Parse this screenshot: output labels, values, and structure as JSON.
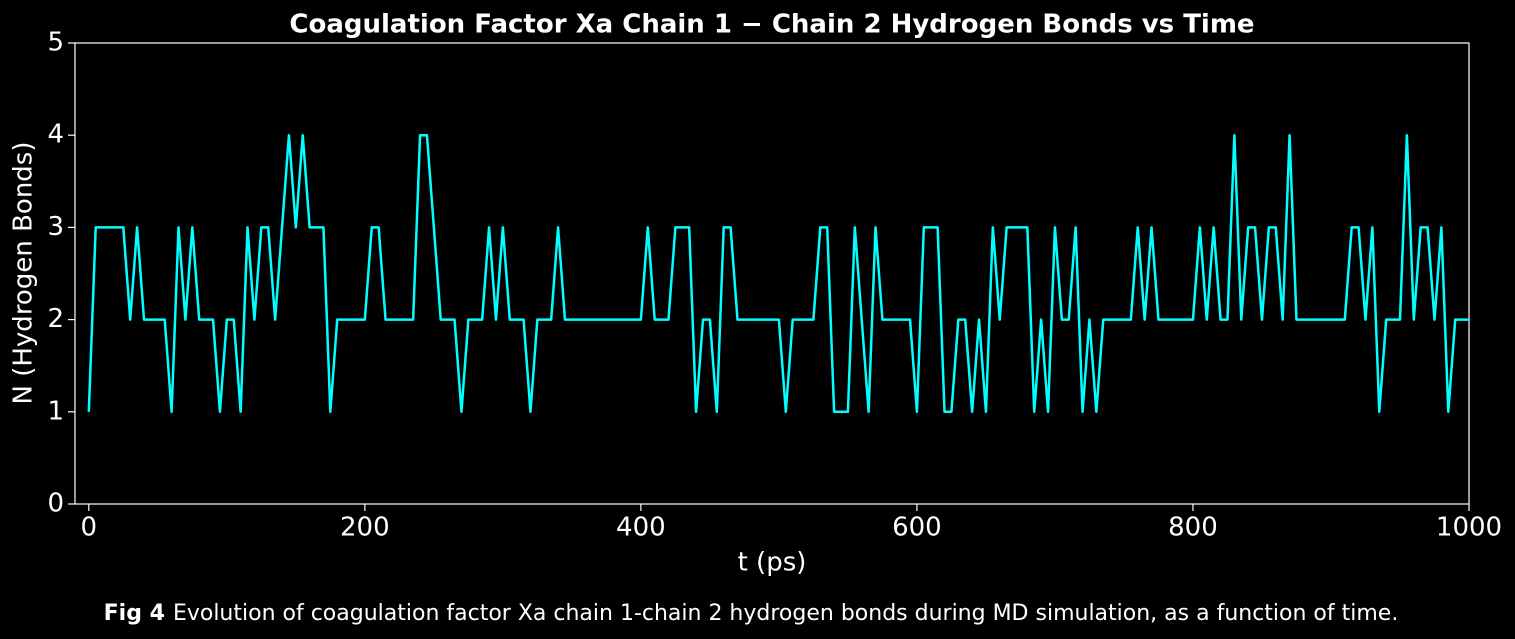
{
  "chart_data": {
    "type": "line",
    "title": "Coagulation Factor Xa Chain 1 − Chain 2 Hydrogen Bonds vs Time",
    "xlabel": "t (ps)",
    "ylabel": "N (Hydrogen Bonds)",
    "caption_label": "Fig 4",
    "caption_text": "Evolution of coagulation factor Xa chain 1-chain 2 hydrogen bonds during MD simulation, as a function of time.",
    "x": [
      0,
      5,
      10,
      15,
      20,
      25,
      30,
      35,
      40,
      45,
      50,
      55,
      60,
      65,
      70,
      75,
      80,
      85,
      90,
      95,
      100,
      105,
      110,
      115,
      120,
      125,
      130,
      135,
      140,
      145,
      150,
      155,
      160,
      165,
      170,
      175,
      180,
      185,
      190,
      195,
      200,
      205,
      210,
      215,
      220,
      225,
      230,
      235,
      240,
      245,
      250,
      255,
      260,
      265,
      270,
      275,
      280,
      285,
      290,
      295,
      300,
      305,
      310,
      315,
      320,
      325,
      330,
      335,
      340,
      345,
      350,
      355,
      360,
      365,
      370,
      375,
      380,
      385,
      390,
      395,
      400,
      405,
      410,
      415,
      420,
      425,
      430,
      435,
      440,
      445,
      450,
      455,
      460,
      465,
      470,
      475,
      480,
      485,
      490,
      495,
      500,
      505,
      510,
      515,
      520,
      525,
      530,
      535,
      540,
      545,
      550,
      555,
      560,
      565,
      570,
      575,
      580,
      585,
      590,
      595,
      600,
      605,
      610,
      615,
      620,
      625,
      630,
      635,
      640,
      645,
      650,
      655,
      660,
      665,
      670,
      675,
      680,
      685,
      690,
      695,
      700,
      705,
      710,
      715,
      720,
      725,
      730,
      735,
      740,
      745,
      750,
      755,
      760,
      765,
      770,
      775,
      780,
      785,
      790,
      795,
      800,
      805,
      810,
      815,
      820,
      825,
      830,
      835,
      840,
      845,
      850,
      855,
      860,
      865,
      870,
      875,
      880,
      885,
      890,
      895,
      900,
      905,
      910,
      915,
      920,
      925,
      930,
      935,
      940,
      945,
      950,
      955,
      960,
      965,
      970,
      975,
      980,
      985,
      990,
      995,
      1000
    ],
    "series": [
      {
        "name": "Hydrogen bonds",
        "color": "#00ffff",
        "values": [
          1,
          3,
          3,
          3,
          3,
          3,
          2,
          3,
          2,
          2,
          2,
          2,
          1,
          3,
          2,
          3,
          2,
          2,
          2,
          1,
          2,
          2,
          1,
          3,
          2,
          3,
          3,
          2,
          3,
          4,
          3,
          4,
          3,
          3,
          3,
          1,
          2,
          2,
          2,
          2,
          2,
          3,
          3,
          2,
          2,
          2,
          2,
          2,
          4,
          4,
          3,
          2,
          2,
          2,
          1,
          2,
          2,
          2,
          3,
          2,
          3,
          2,
          2,
          2,
          1,
          2,
          2,
          2,
          3,
          2,
          2,
          2,
          2,
          2,
          2,
          2,
          2,
          2,
          2,
          2,
          2,
          3,
          2,
          2,
          2,
          3,
          3,
          3,
          1,
          2,
          2,
          1,
          3,
          3,
          2,
          2,
          2,
          2,
          2,
          2,
          2,
          1,
          2,
          2,
          2,
          2,
          3,
          3,
          1,
          1,
          1,
          3,
          2,
          1,
          3,
          2,
          2,
          2,
          2,
          2,
          1,
          3,
          3,
          3,
          1,
          1,
          2,
          2,
          1,
          2,
          1,
          3,
          2,
          3,
          3,
          3,
          3,
          1,
          2,
          1,
          3,
          2,
          2,
          3,
          1,
          2,
          1,
          2,
          2,
          2,
          2,
          2,
          3,
          2,
          3,
          2,
          2,
          2,
          2,
          2,
          2,
          3,
          2,
          3,
          2,
          2,
          4,
          2,
          3,
          3,
          2,
          3,
          3,
          2,
          4,
          2,
          2,
          2,
          2,
          2,
          2,
          2,
          2,
          3,
          3,
          2,
          3,
          1,
          2,
          2,
          2,
          4,
          2,
          3,
          3,
          2,
          3,
          1,
          2,
          2,
          2
        ]
      }
    ],
    "xlim": [
      -10,
      1000
    ],
    "xticks": [
      0,
      200,
      400,
      600,
      800,
      1000
    ],
    "ylim": [
      0,
      5
    ],
    "yticks": [
      0,
      1,
      2,
      3,
      4,
      5
    ],
    "grid": false
  }
}
